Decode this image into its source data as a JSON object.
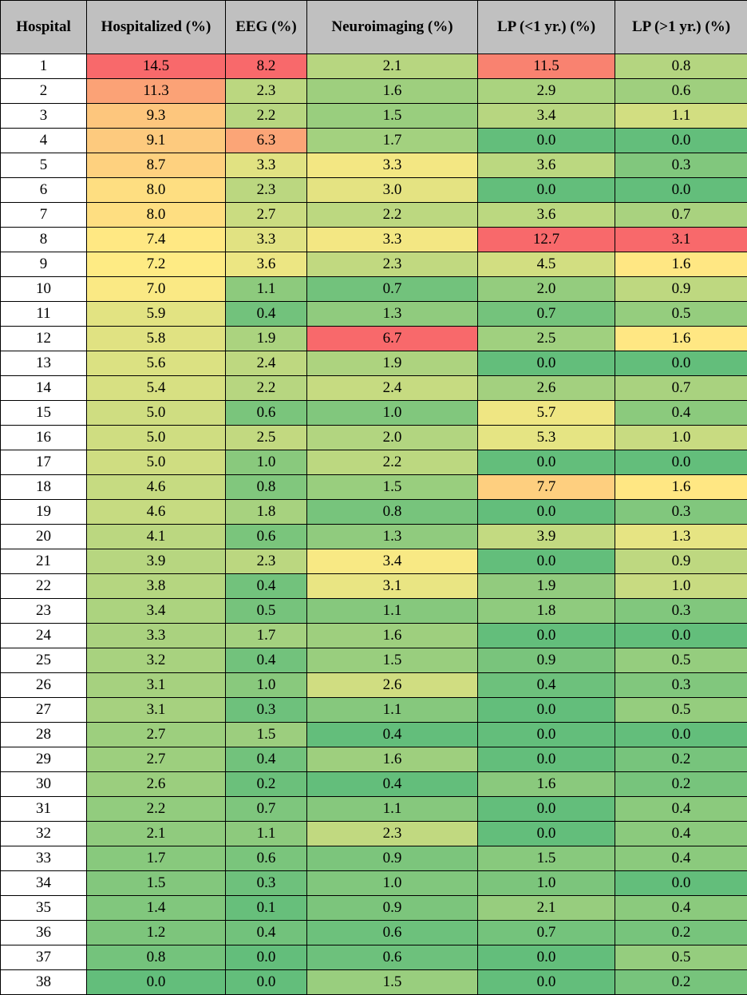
{
  "chart_data": {
    "type": "heatmap",
    "columns": [
      "Hospital",
      "Hospitalized (%)",
      "EEG (%)",
      "Neuroimaging (%)",
      "LP (<1 yr.) (%)",
      "LP (>1 yr.) (%)"
    ],
    "rows": [
      [
        "1",
        "14.5",
        "8.2",
        "2.1",
        "11.5",
        "0.8"
      ],
      [
        "2",
        "11.3",
        "2.3",
        "1.6",
        "2.9",
        "0.6"
      ],
      [
        "3",
        "9.3",
        "2.2",
        "1.5",
        "3.4",
        "1.1"
      ],
      [
        "4",
        "9.1",
        "6.3",
        "1.7",
        "0.0",
        "0.0"
      ],
      [
        "5",
        "8.7",
        "3.3",
        "3.3",
        "3.6",
        "0.3"
      ],
      [
        "6",
        "8.0",
        "2.3",
        "3.0",
        "0.0",
        "0.0"
      ],
      [
        "7",
        "8.0",
        "2.7",
        "2.2",
        "3.6",
        "0.7"
      ],
      [
        "8",
        "7.4",
        "3.3",
        "3.3",
        "12.7",
        "3.1"
      ],
      [
        "9",
        "7.2",
        "3.6",
        "2.3",
        "4.5",
        "1.6"
      ],
      [
        "10",
        "7.0",
        "1.1",
        "0.7",
        "2.0",
        "0.9"
      ],
      [
        "11",
        "5.9",
        "0.4",
        "1.3",
        "0.7",
        "0.5"
      ],
      [
        "12",
        "5.8",
        "1.9",
        "6.7",
        "2.5",
        "1.6"
      ],
      [
        "13",
        "5.6",
        "2.4",
        "1.9",
        "0.0",
        "0.0"
      ],
      [
        "14",
        "5.4",
        "2.2",
        "2.4",
        "2.6",
        "0.7"
      ],
      [
        "15",
        "5.0",
        "0.6",
        "1.0",
        "5.7",
        "0.4"
      ],
      [
        "16",
        "5.0",
        "2.5",
        "2.0",
        "5.3",
        "1.0"
      ],
      [
        "17",
        "5.0",
        "1.0",
        "2.2",
        "0.0",
        "0.0"
      ],
      [
        "18",
        "4.6",
        "0.8",
        "1.5",
        "7.7",
        "1.6"
      ],
      [
        "19",
        "4.6",
        "1.8",
        "0.8",
        "0.0",
        "0.3"
      ],
      [
        "20",
        "4.1",
        "0.6",
        "1.3",
        "3.9",
        "1.3"
      ],
      [
        "21",
        "3.9",
        "2.3",
        "3.4",
        "0.0",
        "0.9"
      ],
      [
        "22",
        "3.8",
        "0.4",
        "3.1",
        "1.9",
        "1.0"
      ],
      [
        "23",
        "3.4",
        "0.5",
        "1.1",
        "1.8",
        "0.3"
      ],
      [
        "24",
        "3.3",
        "1.7",
        "1.6",
        "0.0",
        "0.0"
      ],
      [
        "25",
        "3.2",
        "0.4",
        "1.5",
        "0.9",
        "0.5"
      ],
      [
        "26",
        "3.1",
        "1.0",
        "2.6",
        "0.4",
        "0.3"
      ],
      [
        "27",
        "3.1",
        "0.3",
        "1.1",
        "0.0",
        "0.5"
      ],
      [
        "28",
        "2.7",
        "1.5",
        "0.4",
        "0.0",
        "0.0"
      ],
      [
        "29",
        "2.7",
        "0.4",
        "1.6",
        "0.0",
        "0.2"
      ],
      [
        "30",
        "2.6",
        "0.2",
        "0.4",
        "1.6",
        "0.2"
      ],
      [
        "31",
        "2.2",
        "0.7",
        "1.1",
        "0.0",
        "0.4"
      ],
      [
        "32",
        "2.1",
        "1.1",
        "2.3",
        "0.0",
        "0.4"
      ],
      [
        "33",
        "1.7",
        "0.6",
        "0.9",
        "1.5",
        "0.4"
      ],
      [
        "34",
        "1.5",
        "0.3",
        "1.0",
        "1.0",
        "0.0"
      ],
      [
        "35",
        "1.4",
        "0.1",
        "0.9",
        "2.1",
        "0.4"
      ],
      [
        "36",
        "1.2",
        "0.4",
        "0.6",
        "0.7",
        "0.2"
      ],
      [
        "37",
        "0.8",
        "0.0",
        "0.6",
        "0.0",
        "0.5"
      ],
      [
        "38",
        "0.0",
        "0.0",
        "1.5",
        "0.0",
        "0.2"
      ]
    ],
    "color_scale": {
      "low": "#63be7b",
      "mid": "#ffeb84",
      "high": "#f8696b",
      "header_background": "#c0c0c0"
    }
  }
}
